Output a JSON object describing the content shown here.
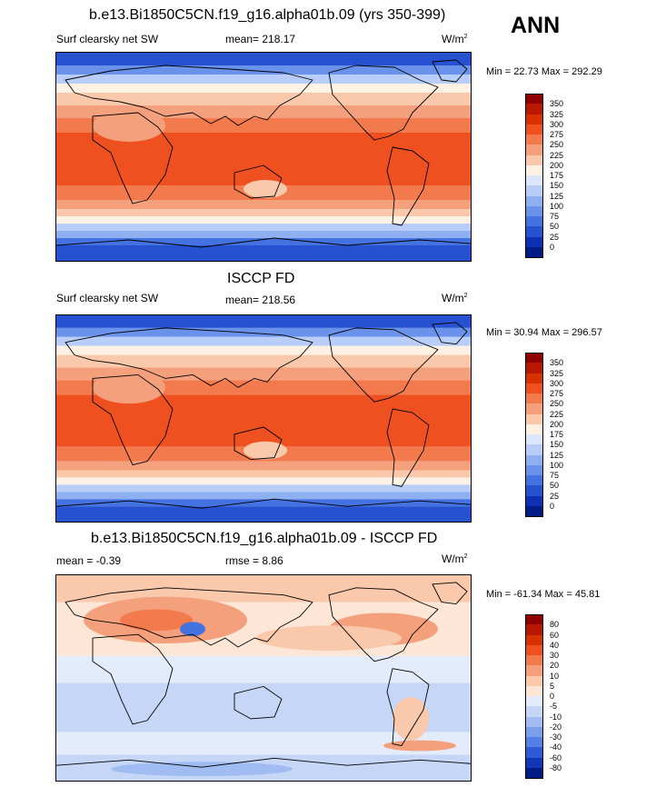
{
  "season": "ANN",
  "panels": [
    {
      "title": "b.e13.Bi1850C5CN.f19_g16.alpha01b.09 (yrs 350-399)",
      "left_label": "Surf clearsky net SW",
      "stat_text": "mean= 218.17",
      "units": "W/m",
      "units_sup": "2",
      "minmax": "Min =  22.73 Max = 292.29",
      "colorbar": {
        "labels": [
          "350",
          "325",
          "300",
          "275",
          "250",
          "225",
          "200",
          "175",
          "150",
          "125",
          "100",
          "75",
          "50",
          "25",
          "0"
        ],
        "colors": [
          "#900000",
          "#b81800",
          "#d93000",
          "#ee5020",
          "#f37a4d",
          "#f5a07c",
          "#fac8ab",
          "#fff2e4",
          "#dde7fb",
          "#b8cdf7",
          "#8fb0f0",
          "#6a92ea",
          "#4472e0",
          "#2652d2",
          "#0d30b4",
          "#001b86"
        ]
      },
      "field": "sw"
    },
    {
      "title": "ISCCP FD",
      "left_label": "Surf clearsky net SW",
      "stat_text": "mean= 218.56",
      "units": "W/m",
      "units_sup": "2",
      "minmax": "Min =  30.94 Max = 296.57",
      "colorbar": {
        "labels": [
          "350",
          "325",
          "300",
          "275",
          "250",
          "225",
          "200",
          "175",
          "150",
          "125",
          "100",
          "75",
          "50",
          "25",
          "0"
        ],
        "colors": [
          "#900000",
          "#b81800",
          "#d93000",
          "#ee5020",
          "#f37a4d",
          "#f5a07c",
          "#fac8ab",
          "#fff2e4",
          "#dde7fb",
          "#b8cdf7",
          "#8fb0f0",
          "#6a92ea",
          "#4472e0",
          "#2652d2",
          "#0d30b4",
          "#001b86"
        ]
      },
      "field": "sw2"
    },
    {
      "title": "b.e13.Bi1850C5CN.f19_g16.alpha01b.09 - ISCCP FD",
      "left_label": "mean =  -0.39",
      "stat_text": "rmse =   8.86",
      "units": "W/m",
      "units_sup": "2",
      "minmax": "Min = -61.34 Max =  45.81",
      "colorbar": {
        "labels": [
          "80",
          "60",
          "40",
          "30",
          "20",
          "10",
          "5",
          "0",
          "-5",
          "-10",
          "-20",
          "-30",
          "-40",
          "-60",
          "-80"
        ],
        "colors": [
          "#900000",
          "#b81800",
          "#d93000",
          "#ee5020",
          "#f37a4d",
          "#f5a07c",
          "#fac8ab",
          "#fde6d6",
          "#e4ecfb",
          "#c6d6f6",
          "#a0bcf2",
          "#7aa0ec",
          "#5480e4",
          "#2e5cd8",
          "#1236b8",
          "#001b86"
        ]
      },
      "field": "diff"
    }
  ]
}
